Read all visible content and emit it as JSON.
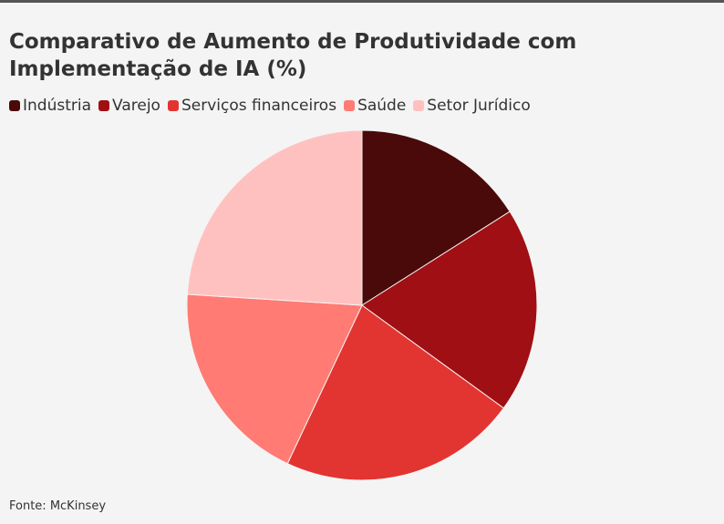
{
  "chart_data": {
    "type": "pie",
    "title": "Comparativo de Aumento de Produtividade com Implementação de IA (%)",
    "categories": [
      "Indústria",
      "Varejo",
      "Serviços financeiros",
      "Saúde",
      "Setor Jurídico"
    ],
    "values": [
      16,
      19,
      22,
      19,
      24
    ],
    "colors": [
      "#4a0a0a",
      "#a00f14",
      "#e23531",
      "#ff7b73",
      "#ffc1bf"
    ],
    "source": "Fonte: McKinsey"
  }
}
